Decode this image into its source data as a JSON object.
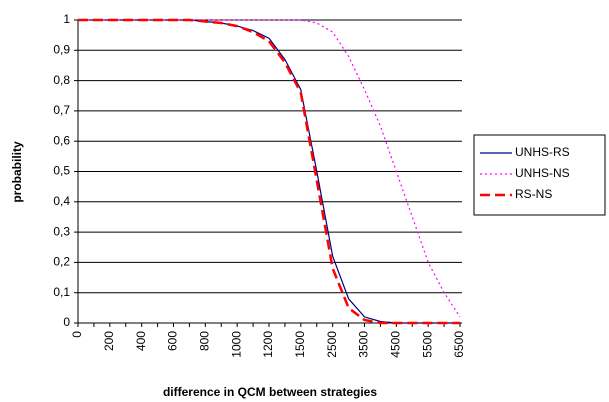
{
  "chart_data": {
    "type": "line",
    "x_label": "difference in QCM between strategies",
    "y_label": "probability",
    "categories": [
      "0",
      null,
      "200",
      null,
      "400",
      null,
      "600",
      null,
      "800",
      null,
      "1000",
      null,
      "1200",
      null,
      "1500",
      null,
      "2500",
      null,
      "3500",
      null,
      "4500",
      null,
      "5500",
      null,
      "6500"
    ],
    "series": [
      {
        "name": "UNHS-RS",
        "color": "#000080",
        "style": "solid",
        "values": [
          1,
          1,
          1,
          1,
          1,
          1,
          1,
          1,
          0.995,
          0.99,
          0.98,
          0.965,
          0.94,
          0.87,
          0.77,
          0.5,
          0.22,
          0.08,
          0.02,
          0.005,
          0,
          0,
          0,
          0,
          0
        ]
      },
      {
        "name": "UNHS-NS",
        "color": "#ff00ff",
        "style": "dotted",
        "values": [
          1,
          1,
          1,
          1,
          1,
          1,
          1,
          1,
          1,
          1,
          1,
          1,
          1,
          1,
          1,
          0.99,
          0.96,
          0.88,
          0.77,
          0.65,
          0.5,
          0.35,
          0.2,
          0.1,
          0.02
        ]
      },
      {
        "name": "RS-NS",
        "color": "#ff0000",
        "style": "dashed",
        "values": [
          1,
          1,
          1,
          1,
          1,
          1,
          1,
          1,
          0.995,
          0.99,
          0.98,
          0.96,
          0.93,
          0.86,
          0.76,
          0.47,
          0.18,
          0.05,
          0.01,
          0,
          0,
          0,
          0,
          0,
          0
        ]
      }
    ],
    "ylim": [
      0,
      1
    ],
    "yticks": [
      0,
      {
        "value": 0.1,
        "label": "0,1"
      },
      {
        "value": 0.2,
        "label": "0,2"
      },
      {
        "value": 0.3,
        "label": "0,3"
      },
      {
        "value": 0.4,
        "label": "0,4"
      },
      {
        "value": 0.5,
        "label": "0,5"
      },
      {
        "value": 0.6,
        "label": "0,6"
      },
      {
        "value": 0.7,
        "label": "0,7"
      },
      {
        "value": 0.8,
        "label": "0,8"
      },
      {
        "value": 0.9,
        "label": "0,9"
      },
      1
    ],
    "grid": true,
    "legend": "right"
  }
}
